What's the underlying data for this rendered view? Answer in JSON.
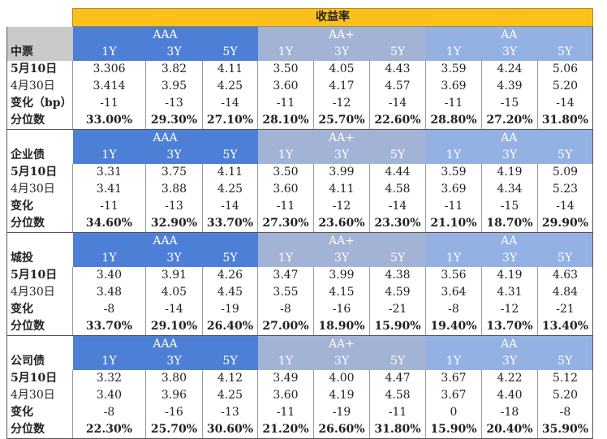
{
  "title": "收益率",
  "ratings": [
    "AAA",
    "AA+",
    "AA"
  ],
  "terms": [
    "1Y",
    "3Y",
    "5Y"
  ],
  "sections": [
    {
      "name": "中票",
      "rows": [
        {
          "label": "5月10日",
          "values": [
            "3.306",
            "3.82",
            "4.11",
            "3.50",
            "4.05",
            "4.43",
            "3.59",
            "4.24",
            "5.06"
          ]
        },
        {
          "label": "4月30日",
          "values": [
            "3.414",
            "3.95",
            "4.25",
            "3.60",
            "4.17",
            "4.57",
            "3.69",
            "4.39",
            "5.20"
          ]
        },
        {
          "label": "变化（bp）",
          "values": [
            "-11",
            "-13",
            "-14",
            "-11",
            "-12",
            "-14",
            "-11",
            "-15",
            "-14"
          ]
        },
        {
          "label": "分位数",
          "values": [
            "33.00%",
            "29.30%",
            "27.10%",
            "28.10%",
            "25.70%",
            "22.60%",
            "28.80%",
            "27.20%",
            "31.80%"
          ]
        }
      ]
    },
    {
      "name": "企业债",
      "rows": [
        {
          "label": "5月10日",
          "values": [
            "3.31",
            "3.75",
            "4.11",
            "3.50",
            "3.99",
            "4.44",
            "3.59",
            "4.19",
            "5.09"
          ]
        },
        {
          "label": "4月30日",
          "values": [
            "3.41",
            "3.88",
            "4.25",
            "3.60",
            "4.11",
            "4.58",
            "3.69",
            "4.34",
            "5.23"
          ]
        },
        {
          "label": "变化",
          "values": [
            "-11",
            "-13",
            "-14",
            "-11",
            "-12",
            "-14",
            "-11",
            "-15",
            "-14"
          ]
        },
        {
          "label": "分位数",
          "values": [
            "34.60%",
            "32.90%",
            "33.70%",
            "27.30%",
            "23.60%",
            "23.30%",
            "21.10%",
            "18.70%",
            "29.90%"
          ]
        }
      ]
    },
    {
      "name": "城投",
      "rows": [
        {
          "label": "5月10日",
          "values": [
            "3.40",
            "3.91",
            "4.26",
            "3.47",
            "3.99",
            "4.38",
            "3.56",
            "4.19",
            "4.63"
          ]
        },
        {
          "label": "4月30日",
          "values": [
            "3.48",
            "4.05",
            "4.45",
            "3.55",
            "4.15",
            "4.59",
            "3.64",
            "4.31",
            "4.84"
          ]
        },
        {
          "label": "变化",
          "values": [
            "-8",
            "-14",
            "-19",
            "-8",
            "-16",
            "-21",
            "-8",
            "-12",
            "-21"
          ]
        },
        {
          "label": "分位数",
          "values": [
            "33.70%",
            "29.10%",
            "26.40%",
            "27.00%",
            "18.90%",
            "15.90%",
            "19.40%",
            "13.70%",
            "13.40%"
          ]
        }
      ]
    },
    {
      "name": "公司债",
      "rows": [
        {
          "label": "5月10日",
          "values": [
            "3.32",
            "3.80",
            "4.12",
            "3.49",
            "4.00",
            "4.47",
            "3.67",
            "4.22",
            "5.12"
          ]
        },
        {
          "label": "4月30日",
          "values": [
            "3.40",
            "3.96",
            "4.25",
            "3.60",
            "4.19",
            "4.58",
            "3.67",
            "4.40",
            "5.20"
          ]
        },
        {
          "label": "变化",
          "values": [
            "-8",
            "-16",
            "-13",
            "-11",
            "-19",
            "-11",
            "0",
            "-18",
            "-8"
          ]
        },
        {
          "label": "分位数",
          "values": [
            "22.30%",
            "25.70%",
            "30.60%",
            "21.20%",
            "26.60%",
            "31.80%",
            "15.90%",
            "20.40%",
            "35.90%"
          ]
        }
      ]
    }
  ]
}
